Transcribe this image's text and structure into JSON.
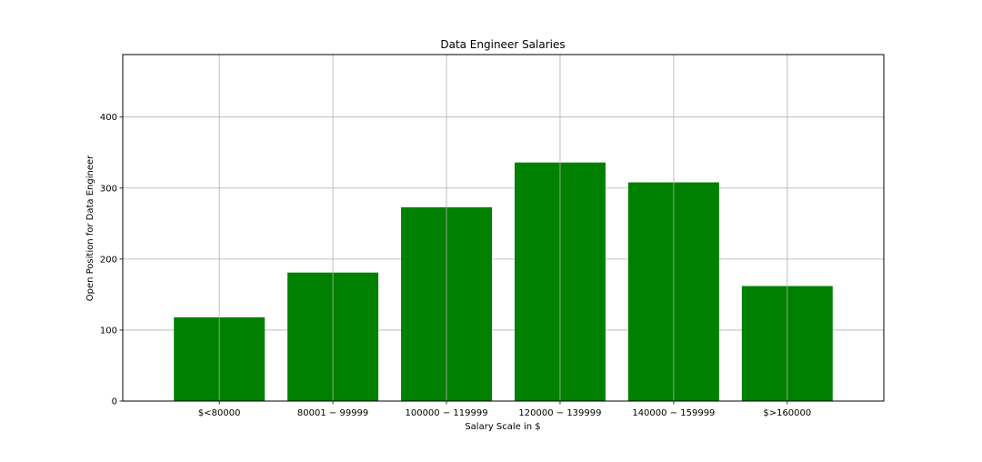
{
  "chart_data": {
    "type": "bar",
    "title": "Data Engineer Salaries",
    "xlabel": "Salary Scale in $",
    "ylabel": "Open Position for Data Engineer",
    "categories": [
      "$<80000",
      "$80001-$99999",
      "$100000-$119999",
      "$120000-$139999",
      "$140000-$159999",
      "$>160000"
    ],
    "category_labels": [
      "$<80000",
      "80001 − 99999",
      "100000 − 119999",
      "120000 − 139999",
      "140000 − 159999",
      "$>160000"
    ],
    "values": [
      118,
      181,
      273,
      336,
      308,
      162
    ],
    "ylim": [
      0,
      488
    ],
    "yticks": [
      0,
      100,
      200,
      300,
      400
    ],
    "bar_color": "#008000",
    "grid": true
  }
}
